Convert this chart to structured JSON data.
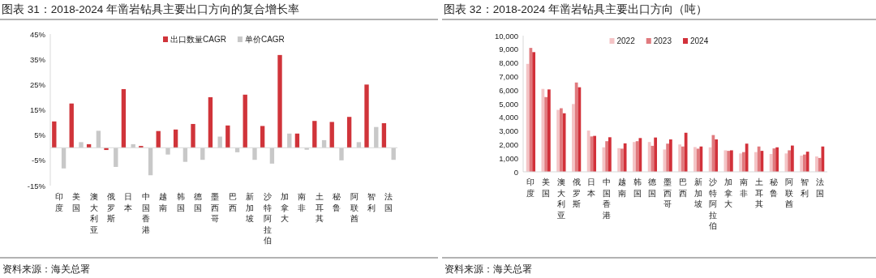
{
  "chart_data": [
    {
      "type": "bar",
      "title": "图表 31：2018-2024 年凿岩钻具主要出口方向的复合增长率",
      "categories": [
        "印度",
        "美国",
        "澳大利亚",
        "俄罗斯",
        "日本",
        "中国香港",
        "越南",
        "韩国",
        "德国",
        "墨西哥",
        "巴西",
        "新加坡",
        "沙特阿拉伯",
        "加拿大",
        "南非",
        "土耳其",
        "秘鲁",
        "阿联酋",
        "智利",
        "法国"
      ],
      "series": [
        {
          "name": "出口数量CAGR",
          "color": "#d0343a",
          "values": [
            10.4,
            17.5,
            1.4,
            -0.9,
            23.2,
            0.7,
            6.6,
            7.2,
            9.4,
            20.0,
            8.8,
            21.0,
            8.6,
            36.7,
            5.6,
            10.6,
            10.2,
            12.2,
            25.0,
            9.7
          ]
        },
        {
          "name": "单价CAGR",
          "color": "#c8c8c8",
          "values": [
            -8.2,
            2.2,
            6.7,
            -7.6,
            1.4,
            -10.9,
            -2.7,
            -5.6,
            -4.8,
            4.4,
            -1.8,
            -4.8,
            -6.3,
            5.6,
            -0.8,
            3.0,
            -5.0,
            2.2,
            8.2,
            -4.8
          ]
        }
      ],
      "ylim": [
        -15,
        45
      ],
      "yticks": [
        {
          "value": -15,
          "label": "-15%"
        },
        {
          "value": -5,
          "label": "-5%"
        },
        {
          "value": 5,
          "label": "5%"
        },
        {
          "value": 15,
          "label": "15%"
        },
        {
          "value": 25,
          "label": "25%"
        },
        {
          "value": 35,
          "label": "35%"
        },
        {
          "value": 45,
          "label": "45%"
        }
      ],
      "legend": "top",
      "grid": false,
      "annotations": [
        "资料来源：海关总署"
      ]
    },
    {
      "type": "bar",
      "title": "图表 32：2018-2024 年凿岩钻具主要出口方向（吨）",
      "categories": [
        "印度",
        "美国",
        "澳大利亚",
        "俄罗斯",
        "日本",
        "中国香港",
        "越南",
        "韩国",
        "德国",
        "墨西哥",
        "巴西",
        "新加坡",
        "沙特阿拉伯",
        "加拿大",
        "南非",
        "土耳其",
        "秘鲁",
        "阿联酋",
        "智利",
        "法国"
      ],
      "series": [
        {
          "name": "2022",
          "color": "#f4c4c6",
          "values": [
            7930,
            6090,
            4550,
            4980,
            3030,
            1800,
            1740,
            2190,
            2190,
            1640,
            2010,
            1820,
            1800,
            1580,
            1350,
            1450,
            1310,
            1350,
            1190,
            1130
          ]
        },
        {
          "name": "2023",
          "color": "#e07a7e",
          "values": [
            9100,
            5490,
            4670,
            6560,
            2600,
            2250,
            1700,
            2250,
            1910,
            2070,
            1860,
            1700,
            2700,
            1540,
            1450,
            1860,
            1720,
            1580,
            1270,
            1020
          ]
        },
        {
          "name": "2024",
          "color": "#d2313a",
          "values": [
            8790,
            6050,
            4300,
            6210,
            2640,
            2540,
            2090,
            2480,
            2520,
            2380,
            2870,
            1860,
            2380,
            1580,
            2070,
            1540,
            1800,
            1930,
            1480,
            1860
          ]
        }
      ],
      "ylim": [
        0,
        10000
      ],
      "yticks": [
        {
          "value": 0,
          "label": "0"
        },
        {
          "value": 1000,
          "label": "1,000"
        },
        {
          "value": 2000,
          "label": "2,000"
        },
        {
          "value": 3000,
          "label": "3,000"
        },
        {
          "value": 4000,
          "label": "4,000"
        },
        {
          "value": 5000,
          "label": "5,000"
        },
        {
          "value": 6000,
          "label": "6,000"
        },
        {
          "value": 7000,
          "label": "7,000"
        },
        {
          "value": 8000,
          "label": "8,000"
        },
        {
          "value": 9000,
          "label": "9,000"
        },
        {
          "value": 10000,
          "label": "10,000"
        }
      ],
      "legend": "top",
      "grid": false,
      "annotations": [
        "资料来源：海关总署"
      ]
    }
  ]
}
